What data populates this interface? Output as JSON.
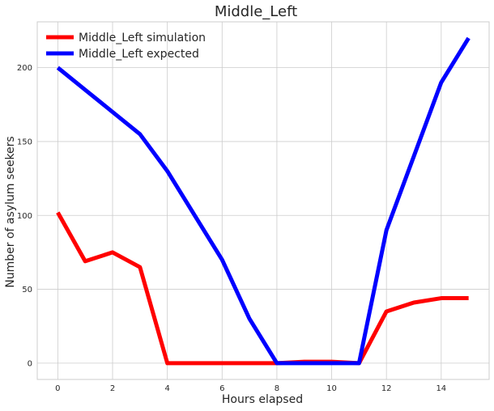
{
  "chart_data": {
    "type": "line",
    "title": "Middle_Left",
    "xlabel": "Hours elapsed",
    "ylabel": "Number of asylum seekers",
    "xlim": [
      -0.75,
      15.75
    ],
    "ylim": [
      -11,
      231
    ],
    "xticks": [
      0,
      2,
      4,
      6,
      8,
      10,
      12,
      14
    ],
    "yticks": [
      0,
      50,
      100,
      150,
      200
    ],
    "grid": true,
    "legend_position": "upper-left",
    "series": [
      {
        "name": "Middle_Left simulation",
        "color": "#ff0000",
        "x": [
          0,
          1,
          2,
          3,
          4,
          5,
          6,
          7,
          8,
          9,
          10,
          11,
          12,
          13,
          14,
          15
        ],
        "y": [
          102,
          69,
          75,
          65,
          0,
          0,
          0,
          0,
          0,
          1,
          1,
          0,
          35,
          41,
          44,
          44
        ]
      },
      {
        "name": "Middle_Left expected",
        "color": "#0000ff",
        "x": [
          0,
          1,
          2,
          3,
          4,
          5,
          6,
          7,
          8,
          9,
          10,
          11,
          12,
          13,
          14,
          15
        ],
        "y": [
          200,
          185,
          170,
          155,
          130,
          100,
          70,
          30,
          0,
          0,
          0,
          0,
          90,
          140,
          190,
          220
        ]
      }
    ]
  }
}
